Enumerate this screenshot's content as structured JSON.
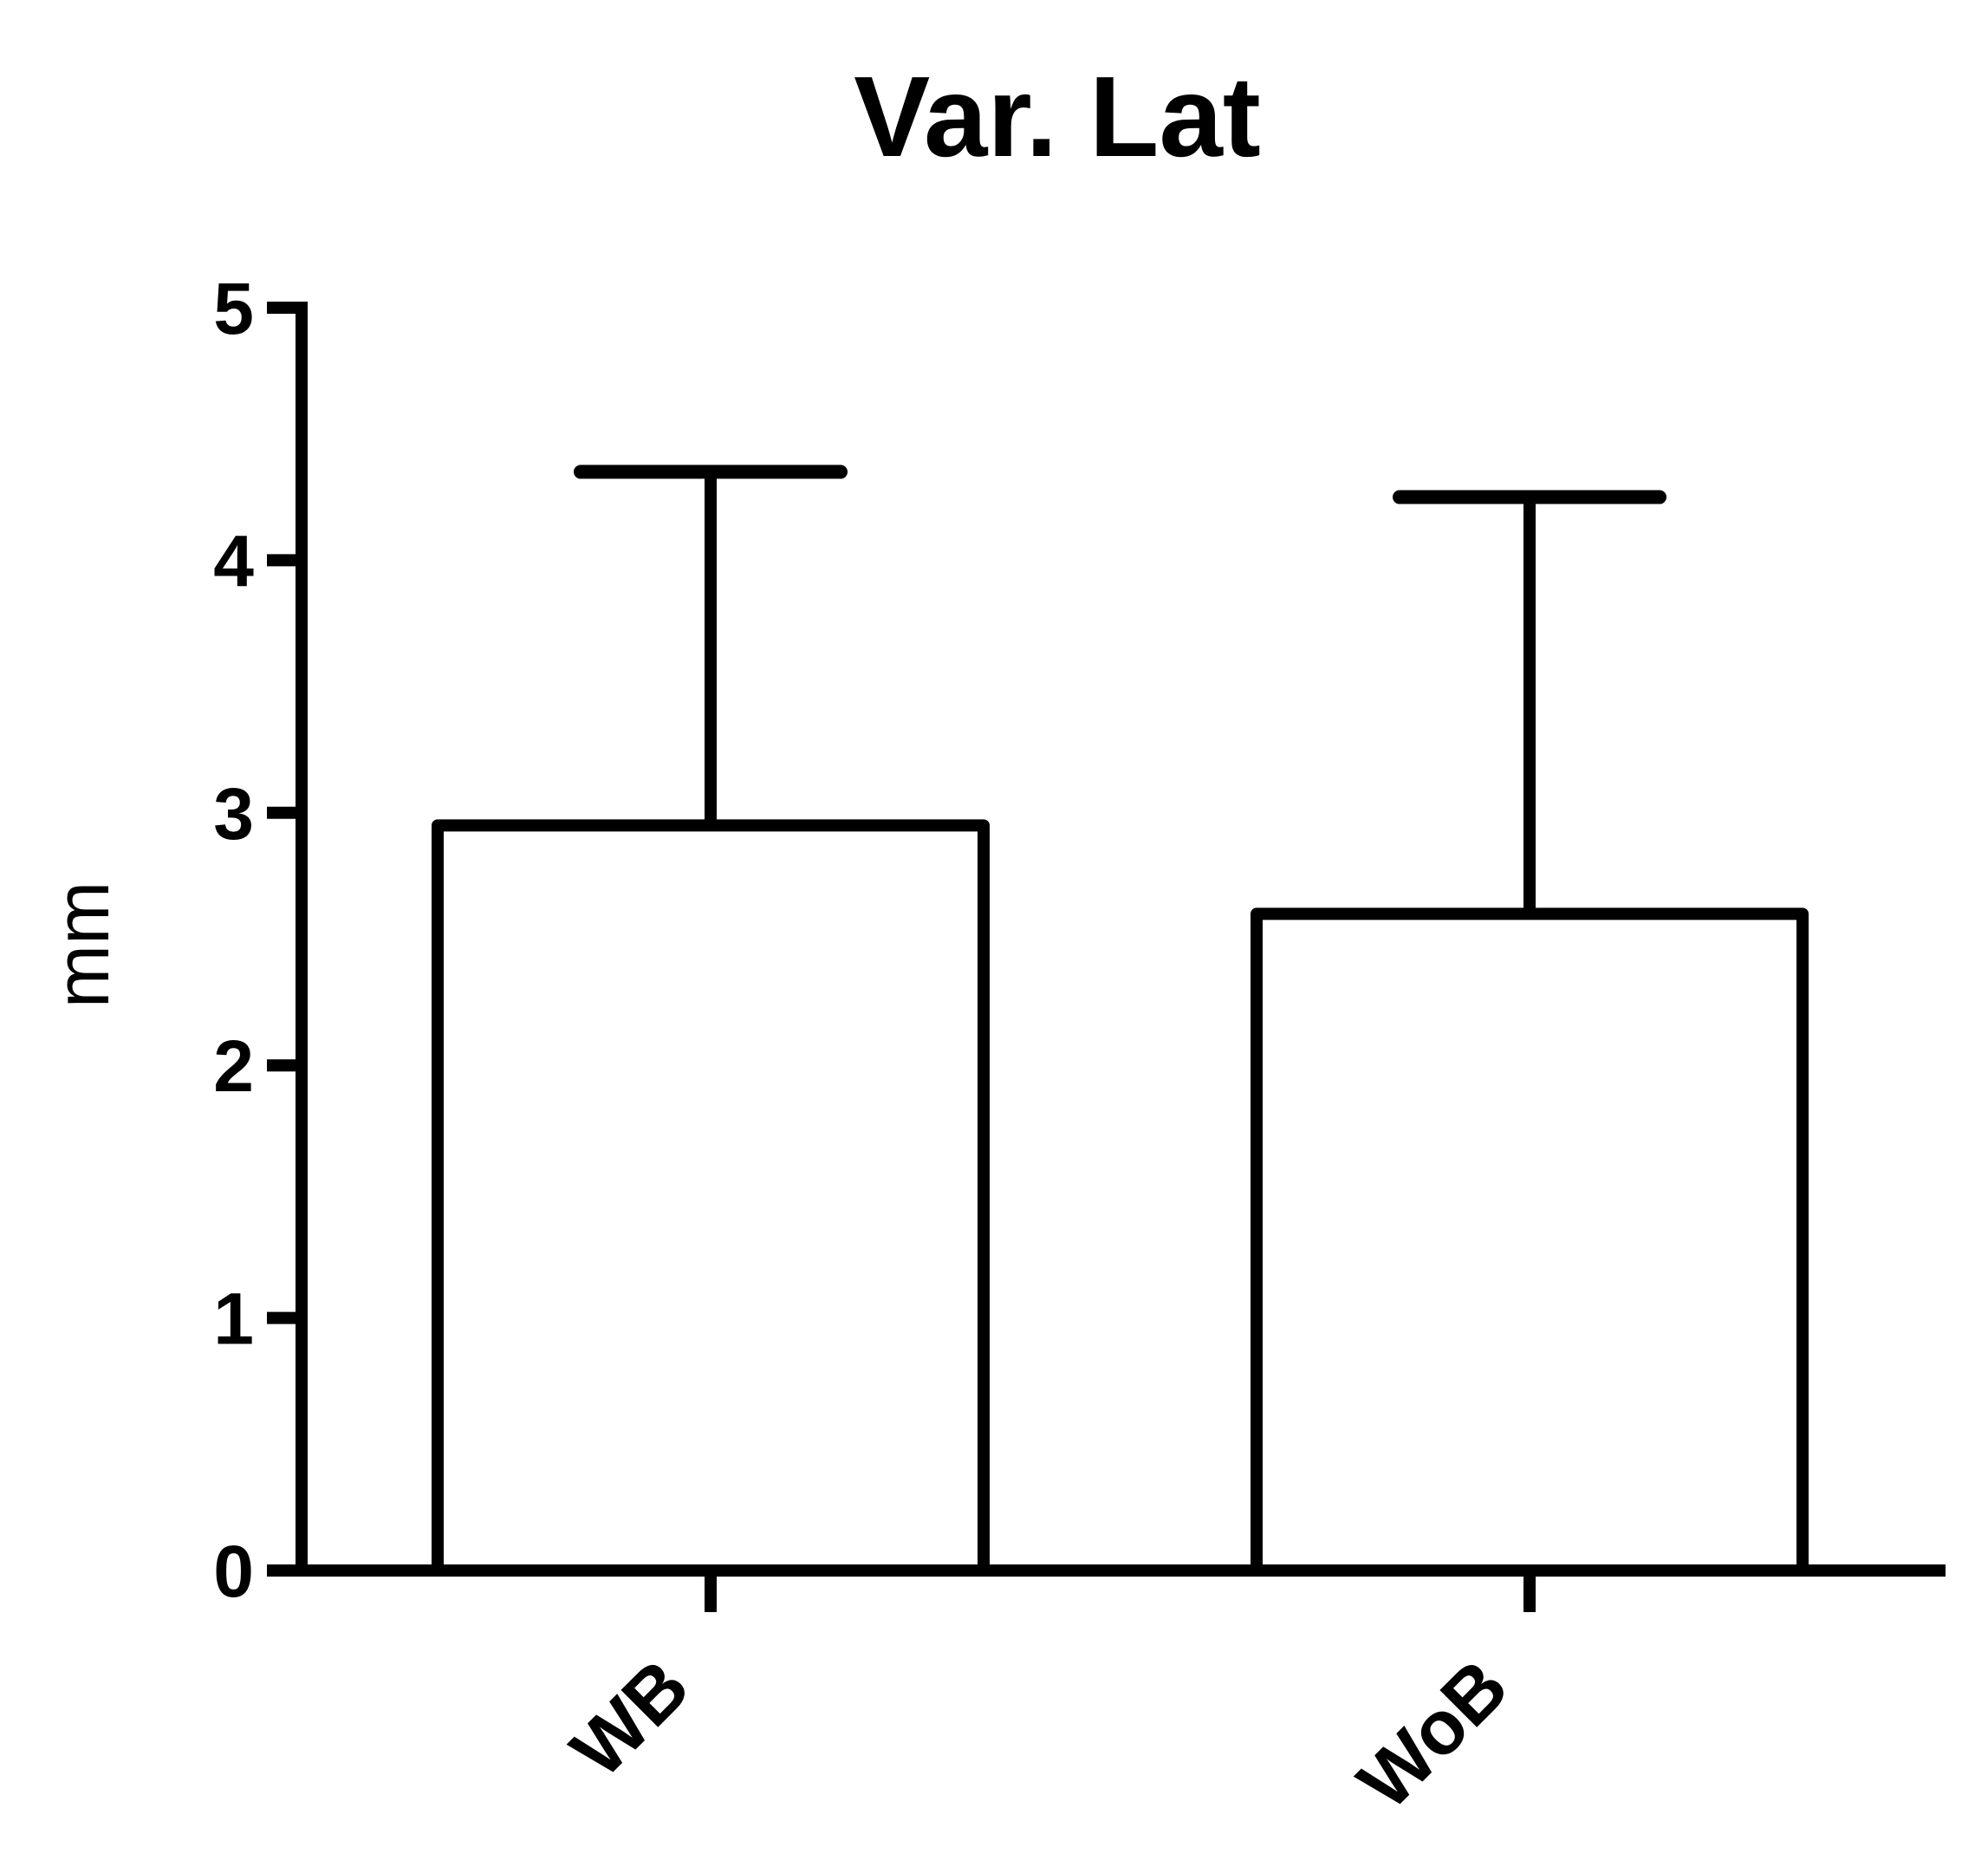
{
  "chart_data": {
    "type": "bar",
    "title": "Var. Lat",
    "xlabel": "",
    "ylabel": "mm",
    "categories": [
      "WB",
      "WoB"
    ],
    "series": [
      {
        "values": [
          2.95,
          2.6
        ],
        "error_upper": [
          4.35,
          4.25
        ]
      }
    ],
    "ylim": [
      0,
      5
    ],
    "yticks": [
      0,
      1,
      2,
      3,
      4,
      5
    ],
    "ytick_labels": [
      "0",
      "1",
      "2",
      "3",
      "4",
      "5"
    ],
    "grid": false,
    "legend": "none",
    "bar_fill": "#ffffff",
    "stroke_color": "#000000"
  }
}
